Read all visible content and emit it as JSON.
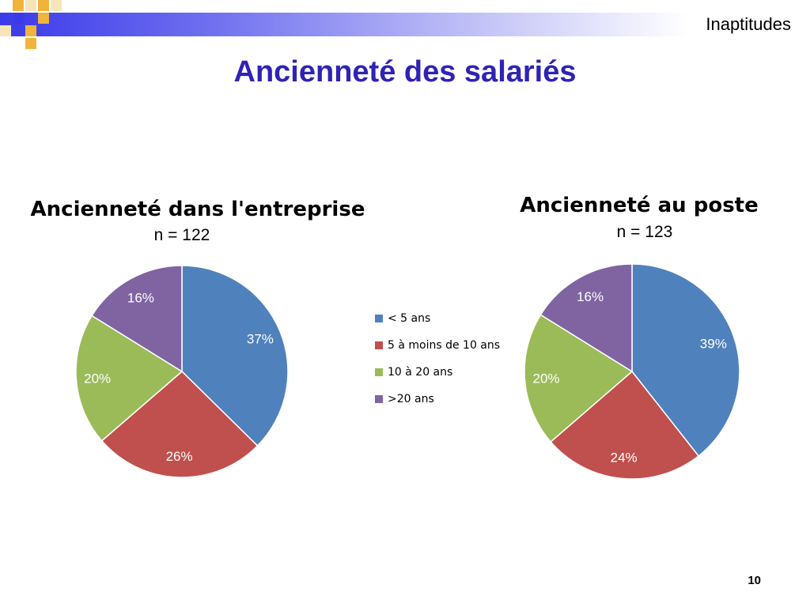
{
  "header": {
    "label": "Inaptitudes"
  },
  "slide": {
    "title": "Ancienneté des salariés",
    "page_number": "10"
  },
  "legend": {
    "items": [
      {
        "label": "< 5 ans",
        "color": "#4f81bd"
      },
      {
        "label": "5 à moins de 10 ans",
        "color": "#c0504d"
      },
      {
        "label": "10 à 20 ans",
        "color": "#9bbb59"
      },
      {
        "label": ">20 ans",
        "color": "#8064a2"
      }
    ]
  },
  "chart_data": [
    {
      "type": "pie",
      "title": "Ancienneté dans l'entreprise",
      "subtitle": "n = 122",
      "categories": [
        "< 5 ans",
        "5 à moins de 10 ans",
        "10 à 20 ans",
        ">20 ans"
      ],
      "values": [
        37,
        26,
        20,
        16
      ],
      "labels": [
        "37%",
        "26%",
        "20%",
        "16%"
      ],
      "colors": [
        "#4f81bd",
        "#c0504d",
        "#9bbb59",
        "#8064a2"
      ]
    },
    {
      "type": "pie",
      "title": "Ancienneté au poste",
      "subtitle": "n = 123",
      "categories": [
        "< 5 ans",
        "5 à moins de 10 ans",
        "10 à 20 ans",
        ">20 ans"
      ],
      "values": [
        39,
        24,
        20,
        16
      ],
      "labels": [
        "39%",
        "24%",
        "20%",
        "16%"
      ],
      "colors": [
        "#4f81bd",
        "#c0504d",
        "#9bbb59",
        "#8064a2"
      ]
    }
  ]
}
